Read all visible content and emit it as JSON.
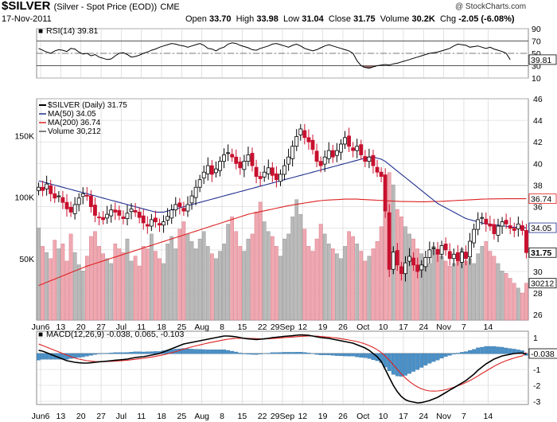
{
  "header": {
    "symbol": "$SILVER",
    "description": "(Silver - Spot Price (EOD))",
    "exchange": "CME",
    "date": "17-Nov-2011",
    "open_label": "Open",
    "open": "33.70",
    "high_label": "High",
    "high": "33.98",
    "low_label": "Low",
    "low": "31.04",
    "close_label": "Close",
    "close": "31.75",
    "volume_label": "Volume",
    "volume": "30.2K",
    "chg_label": "Chg",
    "chg": "-2.05 (-6.08%)",
    "credit": "@ StockCharts.com"
  },
  "colors": {
    "up": "#000000",
    "down": "#c8102e",
    "ma50": "#1f2f8f",
    "ma200": "#dd2222",
    "vol_up": "#b9b9b9",
    "vol_down": "#f0a8b0",
    "macd_hist": "#4a90c8",
    "macd_signal": "#dd2222",
    "grid": "#cfcfcf"
  },
  "chart_data": [
    {
      "type": "line",
      "panel": "RSI",
      "legend": "RSI(14) 39.81",
      "ylim": [
        10,
        90
      ],
      "y_ticks": [
        "90",
        "70",
        "50",
        "30",
        "10"
      ],
      "current_value": "39.81",
      "values": [
        58,
        55,
        52,
        50,
        54,
        56,
        55,
        53,
        58,
        57,
        52,
        49,
        50,
        46,
        48,
        44,
        42,
        40,
        41,
        46,
        50,
        51,
        48,
        44,
        45,
        47,
        50,
        52,
        55,
        57,
        60,
        62,
        64,
        66,
        65,
        63,
        62,
        60,
        62,
        64,
        66,
        63,
        58,
        57,
        54,
        58,
        60,
        65,
        67,
        66,
        63,
        61,
        59,
        56,
        55,
        58,
        60,
        62,
        65,
        66,
        64,
        62,
        60,
        63,
        65,
        62,
        58,
        56,
        54,
        56,
        59,
        62,
        64,
        62,
        60,
        58,
        56,
        54,
        50,
        38,
        30,
        27,
        26,
        28,
        30,
        31,
        32,
        31,
        33,
        34,
        36,
        38,
        40,
        42,
        44,
        46,
        48,
        50,
        51,
        52,
        54,
        56,
        58,
        62,
        65,
        64,
        63,
        60,
        61,
        62,
        60,
        58,
        60,
        57,
        55,
        53,
        50,
        40
      ]
    },
    {
      "type": "candlestick",
      "panel": "Price",
      "legend": [
        "$SILVER (Daily) 31.75",
        "MA(50) 34.05",
        "MA(200) 36.74",
        "Volume 30,212"
      ],
      "ylim": [
        25.5,
        46
      ],
      "y_ticks": [
        "46",
        "44",
        "42",
        "40",
        "38",
        "36",
        "34",
        "32",
        "30",
        "28",
        "26"
      ],
      "volume_ticks": [
        "150K",
        "100K",
        "50K"
      ],
      "current_labels": {
        "ma200": "36.74",
        "ma50": "34.05",
        "close": "31.75",
        "volume": "30212"
      },
      "x_labels": [
        "Jun6",
        "13",
        "20",
        "27",
        "Jul",
        "11",
        "18",
        "25",
        "Aug",
        "8",
        "15",
        "22",
        "29Sep",
        "12",
        "19",
        "26",
        "Oct",
        "10",
        "17",
        "24",
        "Nov",
        "7",
        "14"
      ],
      "closes": [
        37.8,
        37.5,
        38.1,
        37.2,
        36.8,
        37.0,
        36.4,
        35.8,
        35.5,
        36.2,
        36.8,
        37.2,
        37.0,
        36.0,
        35.2,
        35.0,
        34.8,
        35.3,
        35.7,
        35.5,
        35.2,
        34.9,
        35.4,
        35.8,
        35.5,
        35.0,
        34.5,
        34.2,
        34.8,
        34.6,
        34.3,
        34.6,
        35.1,
        35.7,
        36.2,
        36.0,
        35.6,
        36.2,
        37.0,
        37.8,
        38.5,
        39.2,
        39.8,
        39.0,
        39.5,
        40.2,
        40.8,
        41.0,
        40.6,
        40.0,
        39.6,
        40.2,
        40.8,
        39.8,
        38.8,
        38.6,
        39.2,
        39.6,
        38.9,
        38.5,
        39.0,
        39.8,
        40.6,
        41.6,
        42.5,
        43.2,
        42.4,
        42.0,
        41.3,
        40.2,
        39.8,
        40.6,
        41.2,
        40.6,
        41.2,
        41.8,
        42.4,
        41.6,
        41.2,
        41.6,
        40.8,
        40.2,
        40.6,
        39.8,
        39.2,
        38.8,
        35.6,
        30.2,
        31.8,
        30.6,
        29.8,
        30.8,
        31.4,
        30.6,
        30.0,
        30.6,
        31.3,
        32.0,
        32.2,
        31.6,
        32.4,
        32.0,
        31.2,
        31.6,
        31.0,
        31.8,
        31.2,
        32.8,
        33.9,
        34.8,
        35.0,
        34.4,
        34.2,
        33.5,
        34.2,
        34.6,
        34.4,
        34.0,
        33.8,
        34.4,
        33.8,
        31.75
      ],
      "ma50": [
        38.4,
        38.3,
        38.2,
        38.1,
        38.0,
        37.9,
        37.8,
        37.7,
        37.6,
        37.5,
        37.4,
        37.3,
        37.2,
        37.1,
        37.0,
        36.9,
        36.8,
        36.7,
        36.6,
        36.5,
        36.4,
        36.3,
        36.2,
        36.1,
        36.0,
        35.9,
        35.8,
        35.7,
        35.6,
        35.5,
        35.5,
        35.5,
        35.6,
        35.7,
        35.8,
        35.9,
        36.0,
        36.1,
        36.2,
        36.3,
        36.4,
        36.5,
        36.6,
        36.7,
        36.8,
        36.9,
        37.0,
        37.1,
        37.2,
        37.3,
        37.4,
        37.5,
        37.6,
        37.7,
        37.8,
        37.9,
        38.0,
        38.1,
        38.2,
        38.3,
        38.4,
        38.5,
        38.6,
        38.7,
        38.8,
        38.9,
        39.0,
        39.1,
        39.2,
        39.3,
        39.4,
        39.5,
        39.6,
        39.7,
        39.8,
        39.9,
        40.0,
        40.1,
        40.2,
        40.3,
        40.4,
        40.5,
        40.6,
        40.6,
        40.5,
        40.4,
        40.2,
        39.9,
        39.6,
        39.3,
        39.0,
        38.7,
        38.4,
        38.1,
        37.8,
        37.5,
        37.2,
        36.9,
        36.6,
        36.3,
        36.1,
        35.9,
        35.7,
        35.5,
        35.3,
        35.1,
        34.9,
        34.8,
        34.7,
        34.6,
        34.5,
        34.4,
        34.4,
        34.3,
        34.3,
        34.2,
        34.2,
        34.1,
        34.1,
        34.1,
        34.05,
        34.05
      ],
      "ma200": [
        28.7,
        28.85,
        29.0,
        29.15,
        29.3,
        29.45,
        29.6,
        29.75,
        29.9,
        30.05,
        30.2,
        30.35,
        30.5,
        30.62,
        30.74,
        30.86,
        30.98,
        31.1,
        31.22,
        31.34,
        31.46,
        31.58,
        31.7,
        31.82,
        31.94,
        32.06,
        32.18,
        32.3,
        32.42,
        32.54,
        32.66,
        32.78,
        32.9,
        33.02,
        33.14,
        33.26,
        33.38,
        33.5,
        33.62,
        33.74,
        33.86,
        33.98,
        34.1,
        34.22,
        34.34,
        34.46,
        34.58,
        34.7,
        34.82,
        34.94,
        35.06,
        35.18,
        35.3,
        35.38,
        35.46,
        35.54,
        35.62,
        35.7,
        35.78,
        35.86,
        35.94,
        36.02,
        36.1,
        36.16,
        36.22,
        36.28,
        36.34,
        36.4,
        36.46,
        36.52,
        36.56,
        36.6,
        36.62,
        36.64,
        36.66,
        36.68,
        36.7,
        36.7,
        36.7,
        36.7,
        36.68,
        36.66,
        36.64,
        36.62,
        36.6,
        36.58,
        36.56,
        36.54,
        36.52,
        36.5,
        36.48,
        36.48,
        36.47,
        36.47,
        36.46,
        36.46,
        36.46,
        36.47,
        36.48,
        36.49,
        36.5,
        36.52,
        36.54,
        36.56,
        36.58,
        36.6,
        36.62,
        36.64,
        36.66,
        36.68,
        36.7,
        36.71,
        36.72,
        36.72,
        36.73,
        36.73,
        36.74,
        36.74,
        36.74,
        36.74,
        36.74,
        36.74
      ],
      "volume": [
        75,
        60,
        55,
        50,
        65,
        58,
        62,
        48,
        70,
        55,
        45,
        40,
        52,
        68,
        72,
        60,
        54,
        50,
        46,
        62,
        58,
        55,
        66,
        48,
        52,
        44,
        60,
        58,
        70,
        56,
        50,
        46,
        62,
        68,
        58,
        74,
        80,
        70,
        64,
        58,
        66,
        72,
        60,
        54,
        50,
        56,
        62,
        78,
        84,
        72,
        60,
        56,
        66,
        70,
        88,
        96,
        80,
        72,
        68,
        60,
        52,
        66,
        70,
        84,
        98,
        86,
        74,
        60,
        56,
        66,
        78,
        70,
        62,
        58,
        54,
        50,
        60,
        72,
        68,
        62,
        56,
        48,
        52,
        58,
        64,
        76,
        92,
        120,
        110,
        90,
        84,
        76,
        70,
        66,
        58,
        54,
        50,
        46,
        60,
        56,
        52,
        48,
        44,
        46,
        52,
        58,
        48,
        50,
        46,
        54,
        60,
        64,
        56,
        52,
        46,
        40,
        38,
        34,
        30,
        26,
        22,
        30
      ]
    },
    {
      "type": "line",
      "panel": "MACD",
      "legend": "MACD(12,26,9) -0.038, 0.065, -0.103",
      "y_ticks": [
        "1",
        "0",
        "-1",
        "-2",
        "-3"
      ],
      "ylim": [
        -3.2,
        1.4
      ],
      "current_value": "-0.038",
      "x_labels": [
        "Jun6",
        "13",
        "20",
        "27",
        "Jul",
        "11",
        "18",
        "25",
        "Aug",
        "8",
        "15",
        "22",
        "29Sep",
        "12",
        "19",
        "26",
        "Oct",
        "10",
        "17",
        "24",
        "Nov",
        "7",
        "14"
      ],
      "macd": [
        0.2,
        0.15,
        0.05,
        -0.05,
        -0.15,
        -0.25,
        -0.35,
        -0.45,
        -0.5,
        -0.55,
        -0.58,
        -0.6,
        -0.6,
        -0.58,
        -0.55,
        -0.52,
        -0.5,
        -0.48,
        -0.45,
        -0.42,
        -0.4,
        -0.38,
        -0.35,
        -0.3,
        -0.25,
        -0.22,
        -0.2,
        -0.15,
        -0.1,
        -0.05,
        0.0,
        0.1,
        0.2,
        0.3,
        0.4,
        0.5,
        0.6,
        0.65,
        0.7,
        0.75,
        0.8,
        0.85,
        0.9,
        0.95,
        1.0,
        1.05,
        1.1,
        1.1,
        1.08,
        1.05,
        1.0,
        0.95,
        0.92,
        0.9,
        0.88,
        0.9,
        0.92,
        0.95,
        1.0,
        1.02,
        1.05,
        1.08,
        1.1,
        1.12,
        1.15,
        1.17,
        1.16,
        1.14,
        1.1,
        1.05,
        1.0,
        0.98,
        0.95,
        0.9,
        0.85,
        0.8,
        0.75,
        0.7,
        0.65,
        0.55,
        0.45,
        0.35,
        0.2,
        0.0,
        -0.2,
        -0.5,
        -1.0,
        -1.5,
        -2.0,
        -2.4,
        -2.7,
        -2.9,
        -3.0,
        -3.05,
        -3.1,
        -3.08,
        -3.02,
        -2.95,
        -2.85,
        -2.75,
        -2.6,
        -2.45,
        -2.3,
        -2.15,
        -2.0,
        -1.85,
        -1.7,
        -1.5,
        -1.3,
        -1.05,
        -0.85,
        -0.65,
        -0.5,
        -0.35,
        -0.25,
        -0.15,
        -0.1,
        -0.05,
        0.0,
        0.02,
        0.03,
        -0.038
      ],
      "signal": [
        0.6,
        0.5,
        0.4,
        0.3,
        0.2,
        0.1,
        0.0,
        -0.1,
        -0.2,
        -0.28,
        -0.35,
        -0.4,
        -0.45,
        -0.48,
        -0.5,
        -0.51,
        -0.51,
        -0.5,
        -0.49,
        -0.48,
        -0.46,
        -0.44,
        -0.42,
        -0.39,
        -0.36,
        -0.33,
        -0.3,
        -0.26,
        -0.22,
        -0.18,
        -0.13,
        -0.08,
        -0.02,
        0.05,
        0.12,
        0.2,
        0.28,
        0.35,
        0.42,
        0.48,
        0.54,
        0.6,
        0.66,
        0.71,
        0.76,
        0.81,
        0.86,
        0.9,
        0.93,
        0.95,
        0.96,
        0.96,
        0.95,
        0.94,
        0.93,
        0.92,
        0.92,
        0.93,
        0.94,
        0.96,
        0.98,
        1.0,
        1.02,
        1.04,
        1.06,
        1.08,
        1.09,
        1.1,
        1.1,
        1.09,
        1.07,
        1.05,
        1.03,
        1.0,
        0.97,
        0.93,
        0.89,
        0.85,
        0.8,
        0.75,
        0.68,
        0.6,
        0.5,
        0.38,
        0.24,
        0.06,
        -0.16,
        -0.42,
        -0.7,
        -1.0,
        -1.28,
        -1.54,
        -1.76,
        -1.94,
        -2.1,
        -2.22,
        -2.3,
        -2.35,
        -2.36,
        -2.35,
        -2.32,
        -2.27,
        -2.2,
        -2.12,
        -2.03,
        -1.93,
        -1.82,
        -1.7,
        -1.56,
        -1.41,
        -1.25,
        -1.1,
        -0.95,
        -0.8,
        -0.67,
        -0.55,
        -0.45,
        -0.36,
        -0.28,
        -0.21,
        -0.15,
        0.065
      ],
      "histogram": [
        -0.4,
        -0.35,
        -0.35,
        -0.35,
        -0.35,
        -0.35,
        -0.35,
        -0.35,
        -0.3,
        -0.27,
        -0.23,
        -0.2,
        -0.15,
        -0.1,
        -0.05,
        -0.01,
        0.01,
        0.02,
        0.04,
        0.06,
        0.06,
        0.06,
        0.07,
        0.09,
        0.11,
        0.11,
        0.1,
        0.11,
        0.12,
        0.13,
        0.13,
        0.18,
        0.22,
        0.25,
        0.28,
        0.3,
        0.32,
        0.3,
        0.28,
        0.27,
        0.26,
        0.25,
        0.24,
        0.24,
        0.24,
        0.24,
        0.24,
        0.2,
        0.15,
        0.1,
        0.04,
        -0.01,
        -0.03,
        -0.04,
        -0.05,
        -0.02,
        0.0,
        0.02,
        0.06,
        0.06,
        0.07,
        0.08,
        0.08,
        0.08,
        0.09,
        0.09,
        0.07,
        0.04,
        0.0,
        -0.04,
        -0.07,
        -0.07,
        -0.08,
        -0.1,
        -0.12,
        -0.13,
        -0.14,
        -0.15,
        -0.15,
        -0.2,
        -0.23,
        -0.25,
        -0.3,
        -0.38,
        -0.44,
        -0.56,
        -0.84,
        -1.08,
        -1.3,
        -1.4,
        -1.42,
        -1.36,
        -1.24,
        -1.11,
        -1.0,
        -0.86,
        -0.72,
        -0.6,
        -0.49,
        -0.4,
        -0.28,
        -0.18,
        -0.1,
        -0.03,
        0.03,
        0.08,
        0.12,
        0.2,
        0.26,
        0.36,
        0.4,
        0.45,
        0.45,
        0.45,
        0.42,
        0.4,
        0.35,
        0.31,
        0.28,
        0.23,
        0.18,
        -0.103
      ]
    }
  ]
}
